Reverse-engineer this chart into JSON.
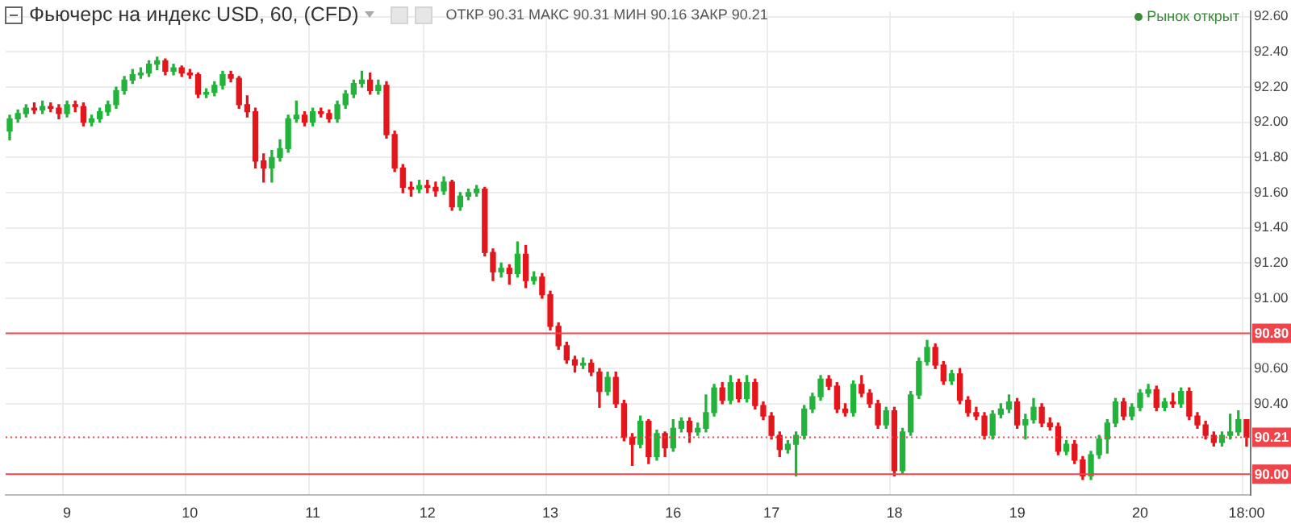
{
  "chart_data": {
    "type": "candlestick",
    "title": "Фьючерс на индекс USD, 60, (CFD)",
    "annotations": [
      "ОТКР 90.31 МАКС 90.31 МИН 90.16 ЗАКР 90.21",
      "Рынок открыт"
    ],
    "categories": [
      null,
      null,
      null,
      null,
      null,
      null,
      null,
      "9",
      null,
      null,
      null,
      null,
      null,
      null,
      null,
      null,
      null,
      null,
      null,
      null,
      null,
      null,
      "10",
      null,
      null,
      null,
      null,
      null,
      null,
      null,
      null,
      null,
      null,
      null,
      null,
      null,
      null,
      "11",
      null,
      null,
      null,
      null,
      null,
      null,
      null,
      null,
      null,
      null,
      null,
      null,
      null,
      "12",
      null,
      null,
      null,
      null,
      null,
      null,
      null,
      null,
      null,
      null,
      null,
      null,
      null,
      null,
      "13",
      null,
      null,
      null,
      null,
      null,
      null,
      null,
      null,
      null,
      null,
      null,
      null,
      null,
      null,
      "16",
      null,
      null,
      null,
      null,
      null,
      null,
      null,
      null,
      null,
      null,
      null,
      "17",
      null,
      null,
      null,
      null,
      null,
      null,
      null,
      null,
      null,
      null,
      null,
      null,
      null,
      null,
      "18",
      null,
      null,
      null,
      null,
      null,
      null,
      null,
      null,
      null,
      null,
      null,
      null,
      null,
      null,
      "19",
      null,
      null,
      null,
      null,
      null,
      null,
      null,
      null,
      null,
      null,
      null,
      null,
      null,
      null,
      "20",
      null,
      null,
      null,
      null,
      null,
      null,
      null,
      null,
      null,
      null,
      null,
      null,
      "18:00"
    ],
    "ohlc": [
      [
        91.95,
        92.04,
        91.9,
        92.02
      ],
      [
        92.02,
        92.07,
        92.0,
        92.05
      ],
      [
        92.05,
        92.1,
        92.03,
        92.08
      ],
      [
        92.08,
        92.11,
        92.05,
        92.07
      ],
      [
        92.07,
        92.12,
        92.05,
        92.09
      ],
      [
        92.09,
        92.11,
        92.06,
        92.08
      ],
      [
        92.08,
        92.1,
        92.02,
        92.05
      ],
      [
        92.05,
        92.12,
        92.03,
        92.1
      ],
      [
        92.1,
        92.12,
        92.06,
        92.09
      ],
      [
        92.09,
        92.11,
        91.98,
        92.0
      ],
      [
        92.0,
        92.04,
        91.98,
        92.02
      ],
      [
        92.02,
        92.08,
        92.0,
        92.06
      ],
      [
        92.06,
        92.12,
        92.04,
        92.1
      ],
      [
        92.1,
        92.2,
        92.08,
        92.18
      ],
      [
        92.18,
        92.26,
        92.16,
        92.24
      ],
      [
        92.24,
        92.3,
        92.22,
        92.27
      ],
      [
        92.27,
        92.31,
        92.25,
        92.28
      ],
      [
        92.28,
        92.35,
        92.26,
        92.33
      ],
      [
        92.33,
        92.37,
        92.3,
        92.35
      ],
      [
        92.35,
        92.36,
        92.27,
        92.29
      ],
      [
        92.29,
        92.33,
        92.27,
        92.31
      ],
      [
        92.31,
        92.32,
        92.26,
        92.28
      ],
      [
        92.28,
        92.3,
        92.25,
        92.27
      ],
      [
        92.27,
        92.28,
        92.14,
        92.16
      ],
      [
        92.16,
        92.19,
        92.14,
        92.17
      ],
      [
        92.17,
        92.23,
        92.15,
        92.21
      ],
      [
        92.21,
        92.29,
        92.19,
        92.27
      ],
      [
        92.27,
        92.29,
        92.23,
        92.25
      ],
      [
        92.25,
        92.26,
        92.08,
        92.1
      ],
      [
        92.1,
        92.15,
        92.03,
        92.06
      ],
      [
        92.06,
        92.08,
        91.74,
        91.78
      ],
      [
        91.78,
        91.82,
        91.66,
        91.74
      ],
      [
        91.74,
        91.84,
        91.66,
        91.8
      ],
      [
        91.8,
        91.9,
        91.78,
        91.85
      ],
      [
        91.85,
        92.04,
        91.83,
        92.02
      ],
      [
        92.02,
        92.12,
        92.0,
        92.04
      ],
      [
        92.04,
        92.06,
        91.98,
        92.0
      ],
      [
        92.0,
        92.08,
        91.98,
        92.06
      ],
      [
        92.06,
        92.08,
        92.03,
        92.05
      ],
      [
        92.05,
        92.07,
        92.0,
        92.02
      ],
      [
        92.02,
        92.12,
        92.0,
        92.1
      ],
      [
        92.1,
        92.18,
        92.08,
        92.16
      ],
      [
        92.16,
        92.24,
        92.14,
        92.22
      ],
      [
        92.22,
        92.29,
        92.2,
        92.24
      ],
      [
        92.24,
        92.28,
        92.16,
        92.18
      ],
      [
        92.18,
        92.24,
        92.16,
        92.21
      ],
      [
        92.21,
        92.23,
        91.91,
        91.93
      ],
      [
        91.93,
        91.95,
        91.72,
        91.74
      ],
      [
        91.74,
        91.76,
        91.6,
        91.63
      ],
      [
        91.63,
        91.66,
        91.58,
        91.62
      ],
      [
        91.62,
        91.67,
        91.6,
        91.64
      ],
      [
        91.64,
        91.67,
        91.6,
        91.63
      ],
      [
        91.63,
        91.66,
        91.58,
        91.61
      ],
      [
        91.61,
        91.69,
        91.59,
        91.66
      ],
      [
        91.66,
        91.67,
        91.5,
        91.52
      ],
      [
        91.52,
        91.6,
        91.5,
        91.58
      ],
      [
        91.58,
        91.62,
        91.56,
        91.6
      ],
      [
        91.6,
        91.64,
        91.58,
        91.62
      ],
      [
        91.62,
        91.63,
        91.24,
        91.26
      ],
      [
        91.26,
        91.28,
        91.1,
        91.15
      ],
      [
        91.15,
        91.2,
        91.12,
        91.17
      ],
      [
        91.17,
        91.19,
        91.08,
        91.14
      ],
      [
        91.14,
        91.32,
        91.12,
        91.25
      ],
      [
        91.25,
        91.3,
        91.06,
        91.1
      ],
      [
        91.1,
        91.15,
        91.08,
        91.12
      ],
      [
        91.12,
        91.14,
        91.0,
        91.02
      ],
      [
        91.02,
        91.04,
        90.82,
        90.84
      ],
      [
        90.84,
        90.86,
        90.71,
        90.73
      ],
      [
        90.73,
        90.75,
        90.63,
        90.65
      ],
      [
        90.65,
        90.67,
        90.58,
        90.62
      ],
      [
        90.62,
        90.66,
        90.6,
        90.63
      ],
      [
        90.63,
        90.65,
        90.56,
        90.58
      ],
      [
        90.58,
        90.6,
        90.38,
        90.47
      ],
      [
        90.47,
        90.58,
        90.45,
        90.55
      ],
      [
        90.55,
        90.58,
        90.38,
        90.4
      ],
      [
        90.4,
        90.42,
        90.19,
        90.21
      ],
      [
        90.21,
        90.23,
        90.05,
        90.17
      ],
      [
        90.17,
        90.33,
        90.15,
        90.3
      ],
      [
        90.3,
        90.31,
        90.06,
        90.1
      ],
      [
        90.1,
        90.25,
        90.08,
        90.23
      ],
      [
        90.23,
        90.24,
        90.1,
        90.15
      ],
      [
        90.15,
        90.31,
        90.13,
        90.26
      ],
      [
        90.26,
        90.32,
        90.24,
        90.3
      ],
      [
        90.3,
        90.32,
        90.18,
        90.24
      ],
      [
        90.24,
        90.29,
        90.22,
        90.26
      ],
      [
        90.26,
        90.45,
        90.24,
        90.35
      ],
      [
        90.35,
        90.51,
        90.33,
        90.49
      ],
      [
        90.49,
        90.52,
        90.4,
        90.42
      ],
      [
        90.42,
        90.56,
        90.4,
        90.52
      ],
      [
        90.52,
        90.54,
        90.41,
        90.43
      ],
      [
        90.43,
        90.56,
        90.41,
        90.52
      ],
      [
        90.52,
        90.54,
        90.37,
        90.39
      ],
      [
        90.39,
        90.41,
        90.31,
        90.33
      ],
      [
        90.33,
        90.35,
        90.2,
        90.22
      ],
      [
        90.22,
        90.24,
        90.1,
        90.14
      ],
      [
        90.14,
        90.19,
        90.12,
        90.17
      ],
      [
        90.17,
        90.24,
        89.99,
        90.22
      ],
      [
        90.22,
        90.39,
        90.2,
        90.37
      ],
      [
        90.37,
        90.46,
        90.35,
        90.44
      ],
      [
        90.44,
        90.56,
        90.42,
        90.54
      ],
      [
        90.54,
        90.56,
        90.48,
        90.5
      ],
      [
        90.5,
        90.52,
        90.35,
        90.37
      ],
      [
        90.37,
        90.4,
        90.33,
        90.35
      ],
      [
        90.35,
        90.53,
        90.33,
        90.51
      ],
      [
        90.51,
        90.56,
        90.44,
        90.46
      ],
      [
        90.46,
        90.48,
        90.38,
        90.4
      ],
      [
        90.4,
        90.42,
        90.26,
        90.28
      ],
      [
        90.28,
        90.38,
        90.26,
        90.36
      ],
      [
        90.36,
        90.38,
        89.99,
        90.02
      ],
      [
        90.02,
        90.26,
        90.0,
        90.24
      ],
      [
        90.24,
        90.47,
        90.22,
        90.45
      ],
      [
        90.45,
        90.66,
        90.43,
        90.64
      ],
      [
        90.64,
        90.76,
        90.62,
        90.72
      ],
      [
        90.72,
        90.74,
        90.6,
        90.62
      ],
      [
        90.62,
        90.64,
        90.51,
        90.53
      ],
      [
        90.53,
        90.59,
        90.51,
        90.57
      ],
      [
        90.57,
        90.6,
        90.4,
        90.42
      ],
      [
        90.42,
        90.44,
        90.33,
        90.35
      ],
      [
        90.35,
        90.38,
        90.31,
        90.33
      ],
      [
        90.33,
        90.35,
        90.2,
        90.22
      ],
      [
        90.22,
        90.36,
        90.2,
        90.34
      ],
      [
        90.34,
        90.4,
        90.32,
        90.37
      ],
      [
        90.37,
        90.45,
        90.35,
        90.41
      ],
      [
        90.41,
        90.43,
        90.26,
        90.28
      ],
      [
        90.28,
        90.34,
        90.2,
        90.31
      ],
      [
        90.31,
        90.43,
        90.29,
        90.38
      ],
      [
        90.38,
        90.4,
        90.27,
        90.29
      ],
      [
        90.29,
        90.32,
        90.25,
        90.27
      ],
      [
        90.27,
        90.29,
        90.11,
        90.13
      ],
      [
        90.13,
        90.19,
        90.11,
        90.17
      ],
      [
        90.17,
        90.19,
        90.06,
        90.08
      ],
      [
        90.08,
        90.1,
        89.97,
        89.99
      ],
      [
        89.99,
        90.13,
        89.97,
        90.11
      ],
      [
        90.11,
        90.22,
        90.09,
        90.2
      ],
      [
        90.2,
        90.31,
        90.12,
        90.29
      ],
      [
        90.29,
        90.43,
        90.27,
        90.41
      ],
      [
        90.41,
        90.43,
        90.31,
        90.33
      ],
      [
        90.33,
        90.4,
        90.31,
        90.38
      ],
      [
        90.38,
        90.48,
        90.36,
        90.46
      ],
      [
        90.46,
        90.51,
        90.44,
        90.48
      ],
      [
        90.48,
        90.5,
        90.36,
        90.38
      ],
      [
        90.38,
        90.43,
        90.36,
        90.41
      ],
      [
        90.41,
        90.46,
        90.38,
        90.4
      ],
      [
        90.4,
        90.49,
        90.38,
        90.47
      ],
      [
        90.47,
        90.49,
        90.31,
        90.33
      ],
      [
        90.33,
        90.35,
        90.26,
        90.28
      ],
      [
        90.28,
        90.3,
        90.2,
        90.22
      ],
      [
        90.22,
        90.24,
        90.16,
        90.18
      ],
      [
        90.18,
        90.24,
        90.16,
        90.22
      ],
      [
        90.22,
        90.34,
        90.2,
        90.24
      ],
      [
        90.24,
        90.36,
        90.22,
        90.31
      ],
      [
        90.31,
        90.31,
        90.16,
        90.21
      ]
    ],
    "colors": [
      "#22b43a",
      "#22b43a",
      "#22b43a",
      "#e3161b",
      "#22b43a",
      "#e3161b",
      "#e3161b",
      "#22b43a",
      "#e3161b",
      "#e3161b",
      "#22b43a",
      "#22b43a",
      "#22b43a",
      "#22b43a",
      "#22b43a",
      "#22b43a",
      "#22b43a",
      "#22b43a",
      "#22b43a",
      "#e3161b",
      "#22b43a",
      "#e3161b",
      "#e3161b",
      "#e3161b",
      "#22b43a",
      "#22b43a",
      "#22b43a",
      "#e3161b",
      "#e3161b",
      "#e3161b",
      "#e3161b",
      "#e3161b",
      "#22b43a",
      "#22b43a",
      "#22b43a",
      "#22b43a",
      "#e3161b",
      "#22b43a",
      "#e3161b",
      "#e3161b",
      "#22b43a",
      "#22b43a",
      "#22b43a",
      "#22b43a",
      "#e3161b",
      "#22b43a",
      "#e3161b",
      "#e3161b",
      "#e3161b",
      "#e3161b",
      "#22b43a",
      "#e3161b",
      "#e3161b",
      "#22b43a",
      "#e3161b",
      "#22b43a",
      "#22b43a",
      "#22b43a",
      "#e3161b",
      "#e3161b",
      "#22b43a",
      "#e3161b",
      "#22b43a",
      "#e3161b",
      "#22b43a",
      "#e3161b",
      "#e3161b",
      "#e3161b",
      "#e3161b",
      "#e3161b",
      "#22b43a",
      "#e3161b",
      "#e3161b",
      "#22b43a",
      "#e3161b",
      "#e3161b",
      "#e3161b",
      "#22b43a",
      "#e3161b",
      "#22b43a",
      "#e3161b",
      "#22b43a",
      "#22b43a",
      "#e3161b",
      "#22b43a",
      "#22b43a",
      "#22b43a",
      "#e3161b",
      "#22b43a",
      "#e3161b",
      "#22b43a",
      "#e3161b",
      "#e3161b",
      "#e3161b",
      "#e3161b",
      "#22b43a",
      "#22b43a",
      "#22b43a",
      "#22b43a",
      "#22b43a",
      "#e3161b",
      "#e3161b",
      "#e3161b",
      "#22b43a",
      "#e3161b",
      "#e3161b",
      "#e3161b",
      "#22b43a",
      "#e3161b",
      "#22b43a",
      "#22b43a",
      "#22b43a",
      "#22b43a",
      "#e3161b",
      "#e3161b",
      "#22b43a",
      "#e3161b",
      "#e3161b",
      "#e3161b",
      "#e3161b",
      "#22b43a",
      "#22b43a",
      "#22b43a",
      "#e3161b",
      "#22b43a",
      "#22b43a",
      "#e3161b",
      "#e3161b",
      "#e3161b",
      "#22b43a",
      "#e3161b",
      "#e3161b",
      "#22b43a",
      "#22b43a",
      "#22b43a",
      "#22b43a",
      "#e3161b",
      "#22b43a",
      "#22b43a",
      "#22b43a",
      "#e3161b",
      "#22b43a",
      "#e3161b",
      "#22b43a",
      "#e3161b",
      "#e3161b",
      "#e3161b",
      "#e3161b",
      "#22b43a",
      "#22b43a",
      "#22b43a",
      "#e3161b"
    ],
    "ylim": [
      89.88,
      92.63
    ],
    "yticks": [
      {
        "value": 90.4,
        "label": "90.40"
      },
      {
        "value": 90.6,
        "label": "90.60"
      },
      {
        "value": 91,
        "label": "91.00"
      },
      {
        "value": 91.2,
        "label": "91.20"
      },
      {
        "value": 91.4,
        "label": "91.40"
      },
      {
        "value": 91.6,
        "label": "91.60"
      },
      {
        "value": 91.8,
        "label": "91.80"
      },
      {
        "value": 92,
        "label": "92.00"
      },
      {
        "value": 92.2,
        "label": "92.20"
      },
      {
        "value": 92.4,
        "label": "92.40"
      },
      {
        "value": 92.6,
        "label": "92.60"
      }
    ],
    "grid": true,
    "ref_lines": [
      {
        "axis": "y",
        "value": 90.8,
        "label": "90.80",
        "color": "#f0434a",
        "line_style": "solid"
      },
      {
        "axis": "y",
        "value": 90.21,
        "label": "90.21",
        "color": "#f0434a",
        "line_style": "dotted"
      },
      {
        "axis": "y",
        "value": 90,
        "label": "90.00",
        "color": "#f0434a",
        "line_style": "solid"
      }
    ]
  }
}
